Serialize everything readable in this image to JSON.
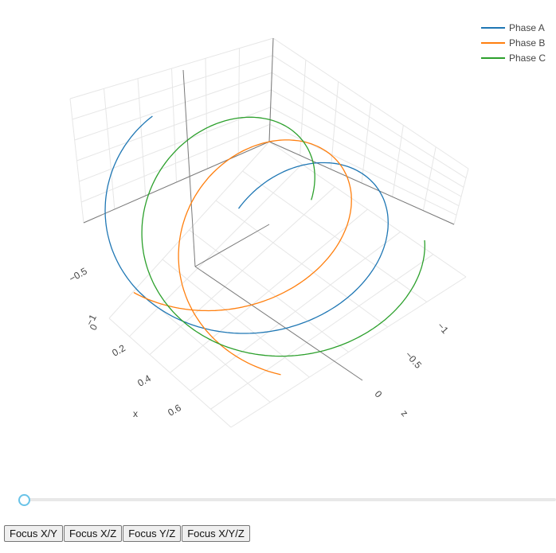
{
  "chart_data": {
    "type": "line3d",
    "title": "",
    "legend": {
      "position": "top-right",
      "entries": [
        "Phase A",
        "Phase B",
        "Phase C"
      ]
    },
    "series": [
      {
        "name": "Phase A",
        "color": "#1f77b4",
        "phase": 0
      },
      {
        "name": "Phase B",
        "color": "#ff7f0e",
        "phase": 2.0944
      },
      {
        "name": "Phase C",
        "color": "#2ca02c",
        "phase": 4.1888
      }
    ],
    "x": {
      "label": "x",
      "range": [
        0,
        0.7
      ],
      "ticks": [
        "0",
        "0.2",
        "0.4",
        "0.6"
      ]
    },
    "y": {
      "label": "",
      "range": [
        -1,
        1
      ],
      "ticks": [
        "−1",
        "−0.5"
      ]
    },
    "z": {
      "label": "z",
      "range": [
        -1,
        1
      ],
      "ticks": [
        "−1",
        "−0.5",
        "0"
      ]
    },
    "curve": {
      "x_start": 0,
      "x_end": 0.65,
      "turns": 1.05,
      "amplitude": 1
    },
    "grid": true
  },
  "controls": {
    "slider_value": 0,
    "buttons": [
      "Focus X/Y",
      "Focus X/Z",
      "Focus Y/Z",
      "Focus X/Y/Z"
    ]
  }
}
